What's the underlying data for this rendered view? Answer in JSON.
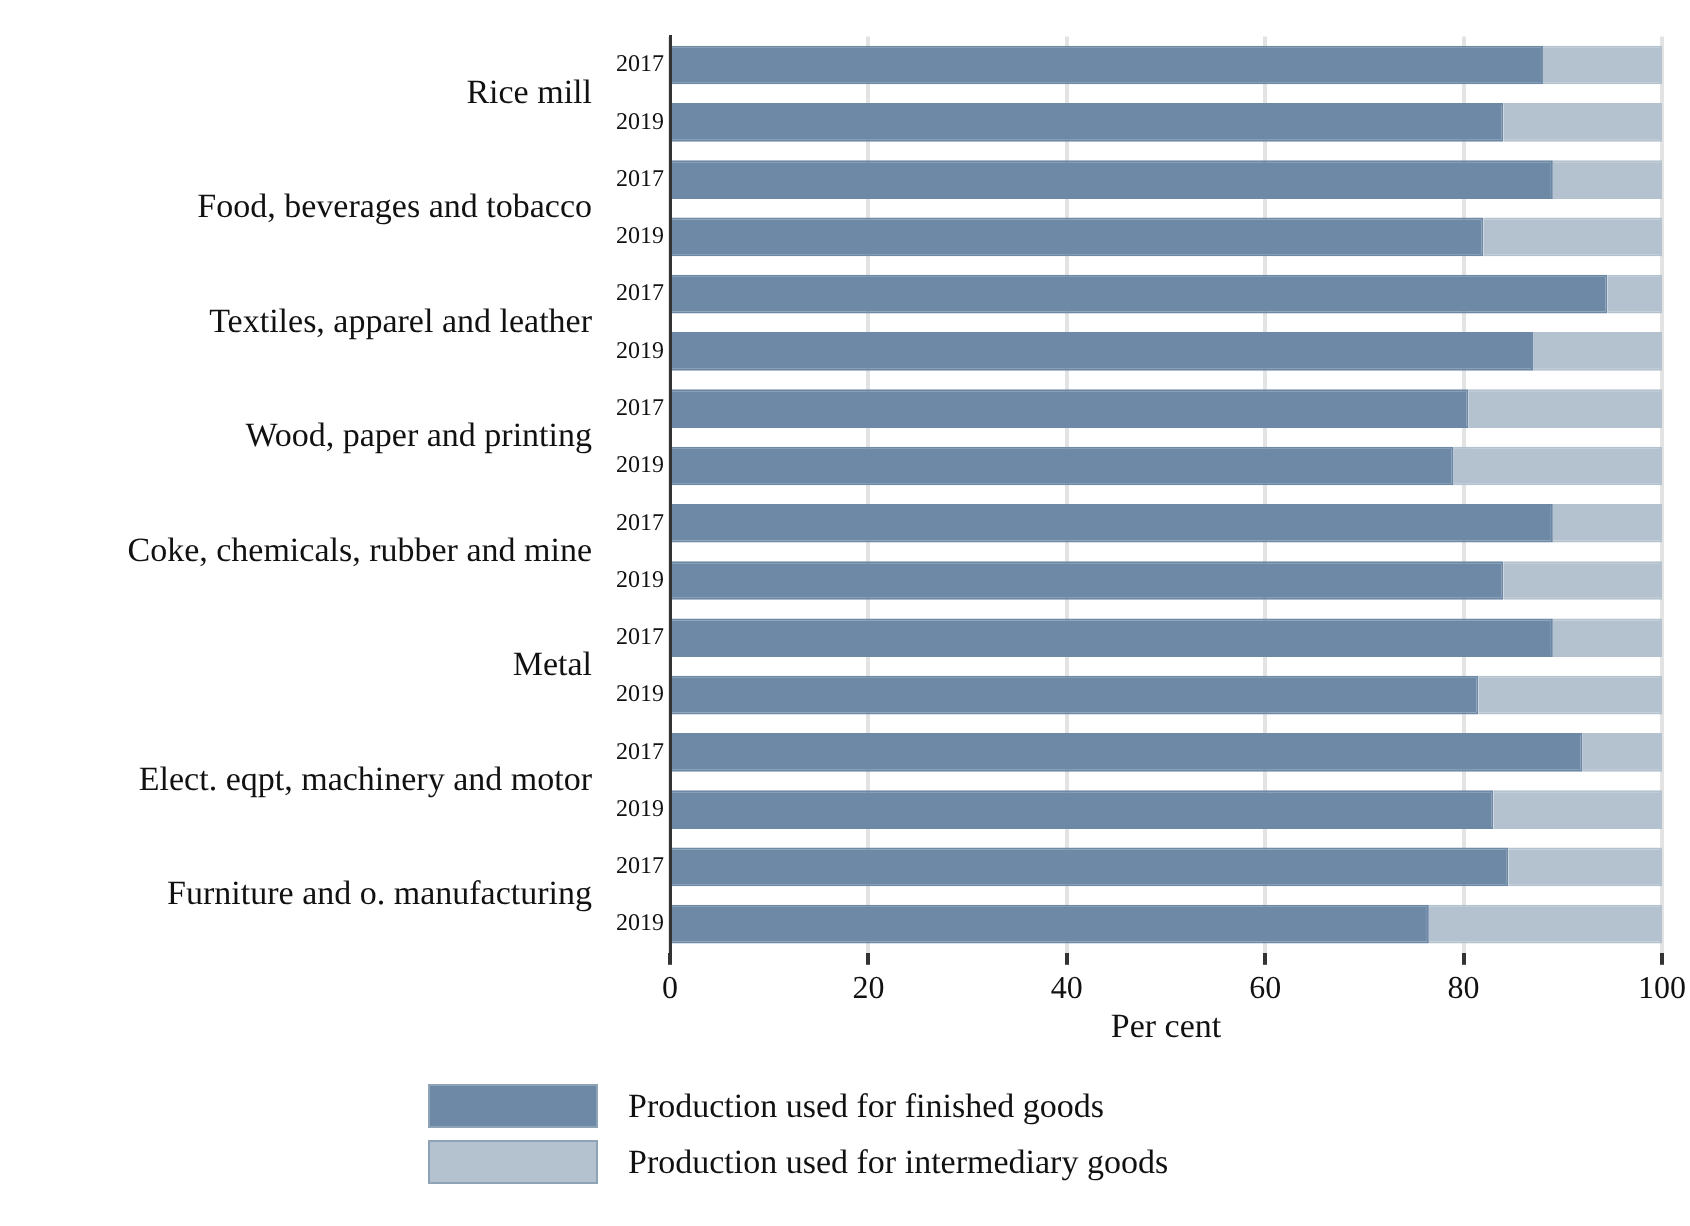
{
  "chart_data": {
    "type": "bar",
    "orientation": "horizontal",
    "stacked": true,
    "xlabel": "Per cent",
    "categories": [
      "2017",
      "2019",
      "2017",
      "2019",
      "2017",
      "2019",
      "2017",
      "2019",
      "2017",
      "2019",
      "2017",
      "2019",
      "2017",
      "2019",
      "2017",
      "2019"
    ],
    "annotations": [
      "Rice mill",
      "Food, beverages and tobacco",
      "Textiles, apparel and leather",
      "Wood, paper and printing",
      "Coke, chemicals, rubber and mine",
      "Metal",
      "Elect. eqpt, machinery and motor",
      "Furniture and o. manufacturing"
    ],
    "series": [
      {
        "name": "Production used for finished goods",
        "color": "#6d89a5",
        "values": [
          88,
          84,
          89,
          82,
          94.5,
          87,
          80.5,
          79,
          89,
          84,
          89,
          81.5,
          92,
          83,
          84.5,
          76.5
        ]
      },
      {
        "name": "Production used for intermediary goods",
        "color": "#b4c1ce",
        "values": [
          12,
          16,
          11,
          18,
          5.5,
          13,
          19.5,
          21,
          11,
          16,
          11,
          18.5,
          8,
          17,
          15.5,
          23.5
        ]
      }
    ],
    "xlim": [
      0,
      100
    ],
    "xticks": [
      0,
      20,
      40,
      60,
      80,
      100
    ],
    "grid": "x",
    "legend": "bottom"
  }
}
